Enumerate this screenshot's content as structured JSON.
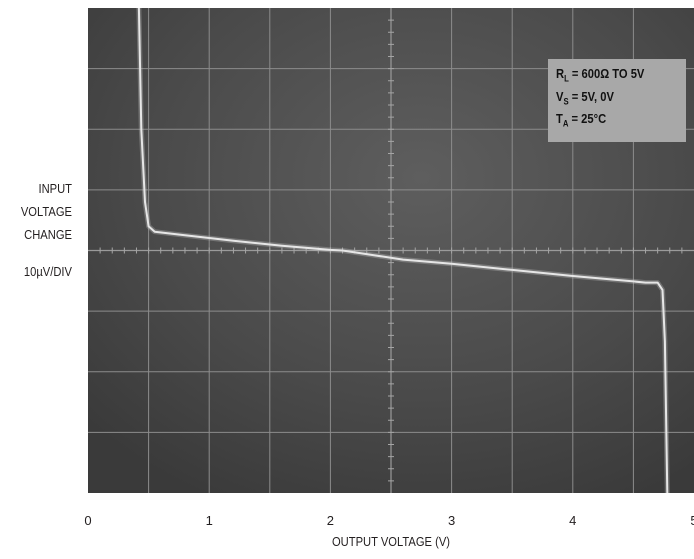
{
  "chart_data": {
    "type": "line",
    "xlabel": "OUTPUT VOLTAGE (V)",
    "ylabel_lines": [
      "INPUT",
      "VOLTAGE",
      "CHANGE"
    ],
    "yscale_label": "10µV/DIV",
    "xlim": [
      0,
      5
    ],
    "x_ticks": [
      "0",
      "1",
      "2",
      "3",
      "4",
      "5"
    ],
    "grid": true,
    "legend": {
      "placement": "top-right",
      "lines": [
        {
          "main": "R",
          "sub": "L",
          "rest": " = 600Ω TO 5V"
        },
        {
          "main": "V",
          "sub": "S",
          "rest": " = 5V, 0V"
        },
        {
          "main": "T",
          "sub": "A",
          "rest": " = 25°C"
        }
      ]
    },
    "series": [
      {
        "x": [
          0.42,
          0.44,
          0.47,
          0.5,
          0.55,
          0.8,
          1.2,
          1.6,
          2.0,
          2.1,
          2.6,
          3.0,
          3.5,
          4.0,
          4.5,
          4.6,
          4.7,
          4.74,
          4.76,
          4.78
        ],
        "y": [
          40,
          20,
          8,
          4,
          3.1,
          2.5,
          1.6,
          0.8,
          0.1,
          0,
          -1.5,
          -2.2,
          -3.2,
          -4.2,
          -5.1,
          -5.3,
          -5.3,
          -6.5,
          -15,
          -40
        ]
      }
    ],
    "colors": {
      "screen": "#4d4d4d",
      "grid": "#8c8c8c",
      "trace": "#e6e6e6",
      "legend_bg": "#a8a8a8"
    }
  }
}
